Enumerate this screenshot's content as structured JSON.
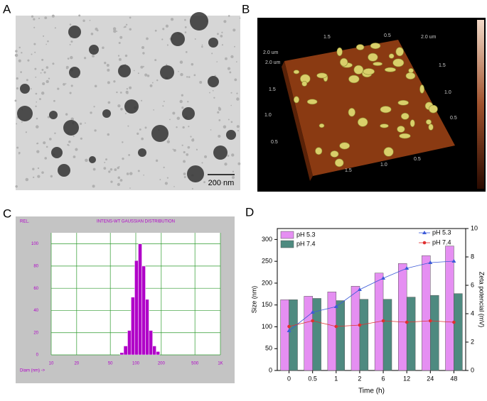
{
  "panel_labels": [
    "A",
    "B",
    "C",
    "D"
  ],
  "tem_image": {
    "scale_bar_label": "200 nm"
  },
  "afm_image": {
    "corner_label": "2.0 um",
    "top_axis": [
      "1.5",
      "0.5",
      "2.0 um"
    ],
    "left_axis": [
      "2.0 um",
      "1.5",
      "1.0",
      "0.5"
    ],
    "right_axis": [
      "1.5",
      "1.0",
      "0.5"
    ],
    "bottom_axis": [
      "1.5",
      "1.0",
      "0.5"
    ]
  },
  "chart_data": [
    {
      "type": "histogram",
      "title": "INTENS-WT GAUSSIAN DISTRIBUTION",
      "ylabel": "REL.",
      "xlabel": "Diam (nm) ->",
      "bins": [
        65,
        72,
        80,
        88,
        97,
        107,
        118,
        130,
        143,
        158,
        174,
        192
      ],
      "values": [
        2,
        8,
        22,
        52,
        85,
        100,
        80,
        50,
        22,
        8,
        3
      ],
      "color": "#b000c8",
      "log_x": true,
      "grid": true,
      "xlim": [
        10,
        1000
      ],
      "xticks": [
        10,
        20,
        50,
        100,
        200,
        500,
        {
          "value": 1000,
          "label": "1K"
        }
      ],
      "ylim": [
        0,
        110
      ],
      "yticks": [
        0,
        20,
        40,
        60,
        80,
        100
      ]
    },
    {
      "type": "bar",
      "xlabel": "Time (h)",
      "ylabel": "Size (nm)",
      "y2label": "Zeta potencial (mV)",
      "categories": [
        "0",
        "0.5",
        "1",
        "2",
        "6",
        "12",
        "24",
        "48"
      ],
      "ylim": [
        0,
        325
      ],
      "yticks": [
        0,
        50,
        100,
        150,
        200,
        250,
        300
      ],
      "y2lim": [
        0,
        10
      ],
      "y2ticks": [
        0,
        2,
        4,
        6,
        8,
        10
      ],
      "series": [
        {
          "name": "pH 5.3",
          "color": "#e58ff2",
          "values": [
            162,
            170,
            180,
            193,
            223,
            245,
            263,
            285
          ]
        },
        {
          "name": "pH 7.4",
          "color": "#4e8a80",
          "values": [
            162,
            165,
            160,
            163,
            163,
            168,
            172,
            176
          ]
        },
        {
          "name": "pH 5.3",
          "color": "#3d5bd8",
          "type": "line",
          "axis": "y2",
          "values": [
            2.8,
            4.1,
            4.5,
            5.7,
            6.5,
            7.2,
            7.6,
            7.7
          ]
        },
        {
          "name": "pH 7.4",
          "color": "#e03030",
          "type": "line",
          "axis": "y2",
          "values": [
            3.1,
            3.5,
            3.1,
            3.2,
            3.5,
            3.4,
            3.5,
            3.4
          ]
        }
      ]
    }
  ]
}
